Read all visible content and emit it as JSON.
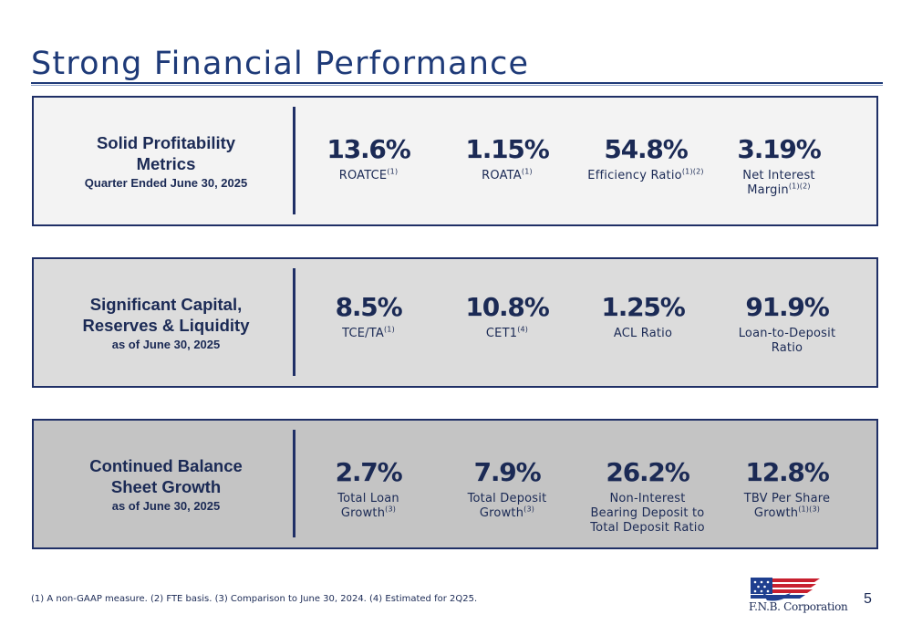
{
  "title": "Strong Financial Performance",
  "panels": [
    {
      "title": "Solid Profitability Metrics",
      "subtitle": "Quarter Ended June 30, 2025",
      "metrics": [
        {
          "value": "13.6%",
          "label": "ROATCE",
          "note": "(1)"
        },
        {
          "value": "1.15%",
          "label": "ROATA",
          "note": "(1)"
        },
        {
          "value": "54.8%",
          "label": "Efficiency Ratio",
          "note": "(1)(2)"
        },
        {
          "value": "3.19%",
          "label_line1": "Net Interest",
          "label_line2": "Margin",
          "note": "(1)(2)"
        }
      ]
    },
    {
      "title": "Significant Capital, Reserves & Liquidity",
      "subtitle": "as of June 30, 2025",
      "metrics": [
        {
          "value": "8.5%",
          "label": "TCE/TA",
          "note": "(1)"
        },
        {
          "value": "10.8%",
          "label": "CET1",
          "note": "(4)"
        },
        {
          "value": "1.25%",
          "label": "ACL Ratio"
        },
        {
          "value": "91.9%",
          "label_line1": "Loan-to-Deposit",
          "label_line2": "Ratio"
        }
      ]
    },
    {
      "title": "Continued Balance Sheet Growth",
      "subtitle": "as of June 30, 2025",
      "metrics": [
        {
          "value": "2.7%",
          "label_line1": "Total Loan",
          "label_line2": "Growth",
          "note": "(3)"
        },
        {
          "value": "7.9%",
          "label_line1": "Total Deposit",
          "label_line2": "Growth",
          "note": "(3)"
        },
        {
          "value": "26.2%",
          "label_line1": "Non-Interest",
          "label_line2": "Bearing Deposit to",
          "label_line3": "Total Deposit Ratio"
        },
        {
          "value": "12.8%",
          "label_line1": "TBV Per Share",
          "label_line2": "Growth",
          "note": "(1)(3)"
        }
      ]
    }
  ],
  "footnote": "(1) A non-GAAP measure. (2) FTE basis. (3) Comparison to June 30, 2024. (4) Estimated for 2Q25.",
  "logo_text": "F.N.B. Corporation",
  "page_number": "5",
  "colors": {
    "navy": "#1b2a55",
    "rule": "#1e3a78",
    "logo_red": "#c8202f",
    "logo_blue": "#1f3f8f"
  }
}
